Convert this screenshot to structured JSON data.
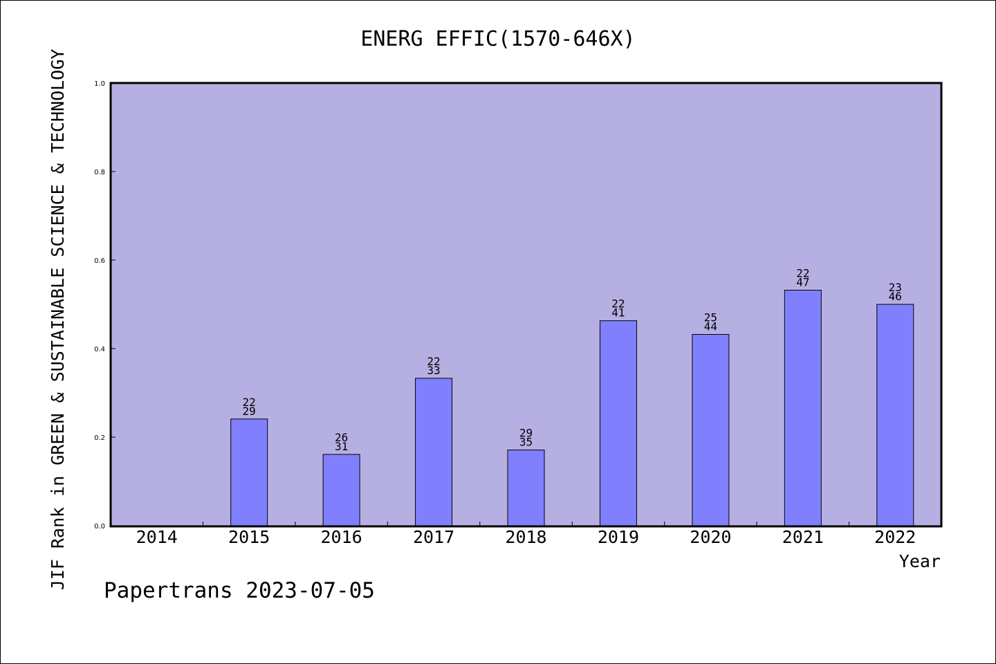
{
  "chart_data": {
    "type": "bar",
    "title": "ENERG EFFIC(1570-646X)",
    "ylabel": "JIF Rank in GREEN & SUSTAINABLE SCIENCE & TECHNOLOGY",
    "xlabel": "Year",
    "categories": [
      "2014",
      "2015",
      "2016",
      "2017",
      "2018",
      "2019",
      "2020",
      "2021",
      "2022"
    ],
    "values": [
      null,
      0.241,
      0.161,
      0.333,
      0.171,
      0.463,
      0.432,
      0.532,
      0.5
    ],
    "bar_labels": [
      null,
      {
        "top": "22",
        "bottom": "29"
      },
      {
        "top": "26",
        "bottom": "31"
      },
      {
        "top": "22",
        "bottom": "33"
      },
      {
        "top": "29",
        "bottom": "35"
      },
      {
        "top": "22",
        "bottom": "41"
      },
      {
        "top": "25",
        "bottom": "44"
      },
      {
        "top": "22",
        "bottom": "47"
      },
      {
        "top": "23",
        "bottom": "46"
      }
    ],
    "ylim": [
      0,
      1.0
    ],
    "yticks": [
      "0.0",
      "0.2",
      "0.4",
      "0.6",
      "0.8",
      "1.0"
    ],
    "grid": false,
    "colors": {
      "plot_background": "#b6b0e2",
      "bar_fill": "#8080ff",
      "bar_stroke": "#000000"
    }
  },
  "footer": "Papertrans 2023-07-05"
}
